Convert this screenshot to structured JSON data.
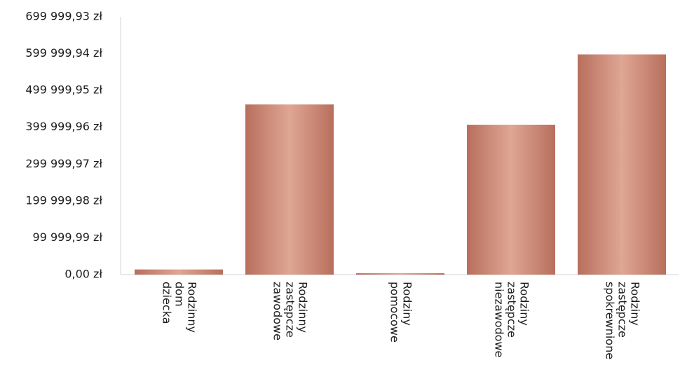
{
  "chart_data": {
    "type": "bar",
    "title": "",
    "xlabel": "",
    "ylabel": "",
    "categories": [
      [
        "Rodzinny",
        "dom",
        "dziecka"
      ],
      [
        "Rodzinny",
        "zastępcze",
        "zawodowe"
      ],
      [
        "Rodziny",
        "pomocowe"
      ],
      [
        "Rodziny",
        "zastępcze",
        "niezawodowe"
      ],
      [
        "Rodziny",
        "zastępcze",
        "spokrewnione"
      ]
    ],
    "values": [
      14000,
      462000,
      1500,
      407000,
      598000
    ],
    "ylim": [
      0,
      699999.93
    ],
    "yticks": [
      0,
      99999.99,
      199999.98,
      299999.97,
      399999.96,
      499999.95,
      599999.94,
      699999.93
    ],
    "ytick_labels": [
      "0,00 zł",
      "99 999,99 zł",
      "199 999,98 zł",
      "299 999,97 zł",
      "399 999,96 zł",
      "499 999,95 zł",
      "599 999,94 zł",
      "699 999,93 zł"
    ],
    "grid": false,
    "legend": "none",
    "colors": {
      "bar_dark": "#b86f5c",
      "bar_light": "#dfa694",
      "axis": "#cfd6dc"
    }
  }
}
